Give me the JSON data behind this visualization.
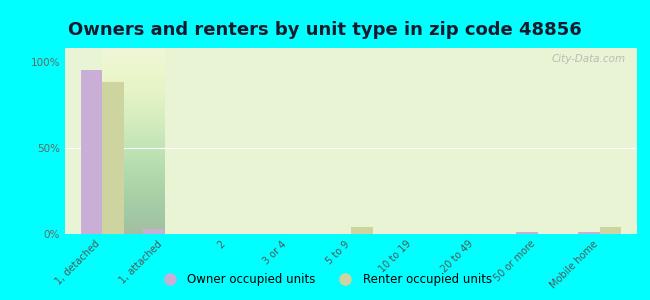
{
  "title": "Owners and renters by unit type in zip code 48856",
  "categories": [
    "1, detached",
    "1, attached",
    "2",
    "3 or 4",
    "5 to 9",
    "10 to 19",
    "20 to 49",
    "50 or more",
    "Mobile home"
  ],
  "owner_values": [
    95,
    3,
    0,
    0,
    0,
    0,
    0,
    1,
    1
  ],
  "renter_values": [
    88,
    0,
    0,
    0,
    4,
    0,
    0,
    0,
    4
  ],
  "owner_color": "#c9aed6",
  "renter_color": "#cdd4a0",
  "bg_top_color": "#d8edbe",
  "bg_bottom_color": "#f0f8e0",
  "outer_background": "#00ffff",
  "yticks": [
    0,
    50,
    100
  ],
  "ytick_labels": [
    "0%",
    "50%",
    "100%"
  ],
  "ylim": [
    0,
    108
  ],
  "bar_width": 0.35,
  "legend_owner": "Owner occupied units",
  "legend_renter": "Renter occupied units",
  "title_fontsize": 13,
  "watermark": "City-Data.com"
}
